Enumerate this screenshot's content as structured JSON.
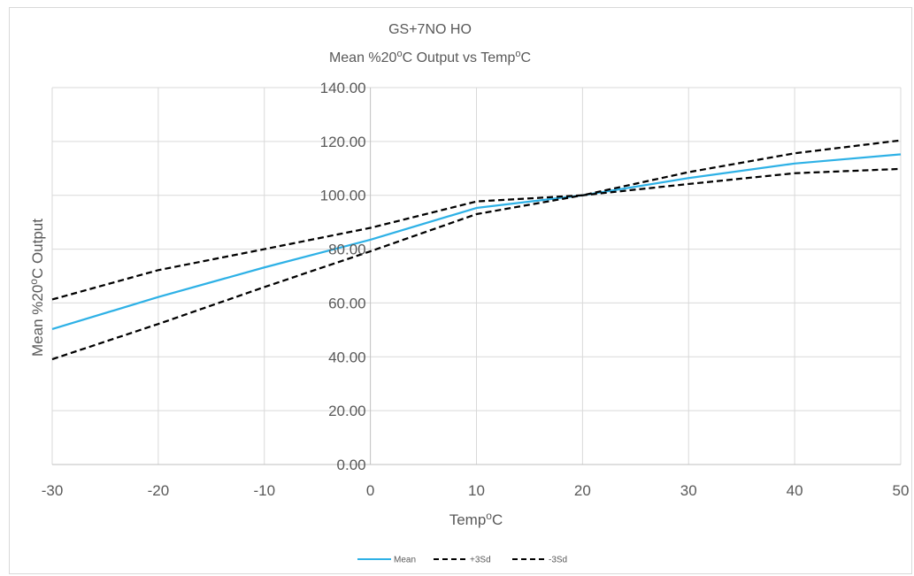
{
  "chart_data": {
    "type": "line",
    "title_line1": "GS+7NO HO",
    "title_line2": "Mean %20°C Output vs Temp°C",
    "title_line2_parts": [
      "Mean %20",
      "o",
      "C Output vs Temp",
      "o",
      "C"
    ],
    "xlabel_parts": [
      "Temp",
      "o",
      "C"
    ],
    "ylabel_parts": [
      "Mean %20",
      "o",
      "C Output"
    ],
    "xlim": [
      -30,
      50
    ],
    "ylim": [
      0,
      140
    ],
    "x_ticks": [
      "-30",
      "-20",
      "-10",
      "0",
      "10",
      "20",
      "30",
      "40",
      "50"
    ],
    "y_ticks": [
      "0.00",
      "20.00",
      "40.00",
      "60.00",
      "80.00",
      "100.00",
      "120.00",
      "140.00"
    ],
    "x_tick_values": [
      -30,
      -20,
      -10,
      0,
      10,
      20,
      30,
      40,
      50
    ],
    "y_tick_values": [
      0,
      20,
      40,
      60,
      80,
      100,
      120,
      140
    ],
    "grid": "vertical-and-horizontal",
    "legend_position": "bottom",
    "x": [
      -30,
      -20,
      -10,
      0,
      10,
      20,
      30,
      40,
      50
    ],
    "series": [
      {
        "name": "Mean",
        "color": "#2eb1e6",
        "dash": "solid",
        "values": [
          50.3,
          62.2,
          73.2,
          83.5,
          95.3,
          100.0,
          106.4,
          111.8,
          115.2
        ]
      },
      {
        "name": "+3Sd",
        "color": "#000000",
        "dash": "dashed",
        "values": [
          61.3,
          72.2,
          80.0,
          87.9,
          97.7,
          100.0,
          108.6,
          115.6,
          120.4
        ]
      },
      {
        "name": "-3Sd",
        "color": "#000000",
        "dash": "dashed",
        "values": [
          39.1,
          52.2,
          65.9,
          79.2,
          93.0,
          100.0,
          104.2,
          108.2,
          109.8
        ]
      }
    ]
  }
}
